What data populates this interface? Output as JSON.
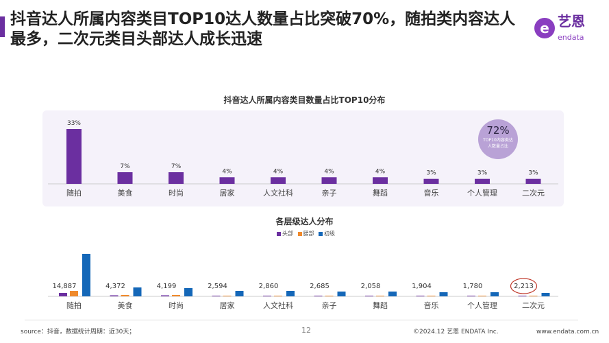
{
  "header": {
    "title": "抖音达人所属内容类目TOP10达人数量占比突破70%，随拍类内容达人最多，二次元类目头部达人成长迅速",
    "logo_cn": "艺恩",
    "logo_en": "endata"
  },
  "colors": {
    "accent": "#6b2fa0",
    "head": "#6b2fa0",
    "waist": "#f08a2c",
    "junior": "#1467b8",
    "highlight": "#c0392b"
  },
  "chart_data": [
    {
      "type": "bar",
      "title": "抖音达人所属内容类目数量占比TOP10分布",
      "categories": [
        "随拍",
        "美食",
        "时尚",
        "居家",
        "人文社科",
        "亲子",
        "舞蹈",
        "音乐",
        "个人管理",
        "二次元"
      ],
      "values": [
        33,
        7,
        7,
        4,
        4,
        4,
        4,
        3,
        3,
        3
      ],
      "labels": [
        "33%",
        "7%",
        "7%",
        "4%",
        "4%",
        "4%",
        "4%",
        "3%",
        "3%",
        "3%"
      ],
      "unit": "%",
      "ylim": [
        0,
        35
      ],
      "annotation": {
        "value": "72%",
        "text": "TOP10内容类达人数量占比"
      }
    },
    {
      "type": "bar",
      "title": "各层级达人分布",
      "categories": [
        "随拍",
        "美食",
        "时尚",
        "居家",
        "人文社科",
        "亲子",
        "舞蹈",
        "音乐",
        "个人管理",
        "二次元"
      ],
      "legend": [
        "头部",
        "腰部",
        "初级"
      ],
      "legend_position": "top-center",
      "value_labels": [
        "14,887",
        "4,372",
        "4,199",
        "2,594",
        "2,860",
        "2,685",
        "2,058",
        "1,904",
        "1,780",
        "2,213"
      ],
      "series": [
        {
          "name": "头部",
          "values": [
            5,
            1.5,
            1.5,
            1,
            1,
            1,
            1,
            1,
            1,
            1
          ]
        },
        {
          "name": "腰部",
          "values": [
            8,
            2,
            2,
            1,
            1,
            1,
            1,
            1,
            1,
            1
          ]
        },
        {
          "name": "初级",
          "values": [
            62,
            13,
            12,
            8,
            8,
            7,
            7,
            6,
            6,
            5
          ]
        }
      ],
      "highlight": "2,213"
    }
  ],
  "footer": {
    "source": "source：抖音，数据统计周期：近30天；",
    "page": "12",
    "copyright": "©2024.12 艺恩 ENDATA Inc.",
    "url": "www.endata.com.cn"
  }
}
